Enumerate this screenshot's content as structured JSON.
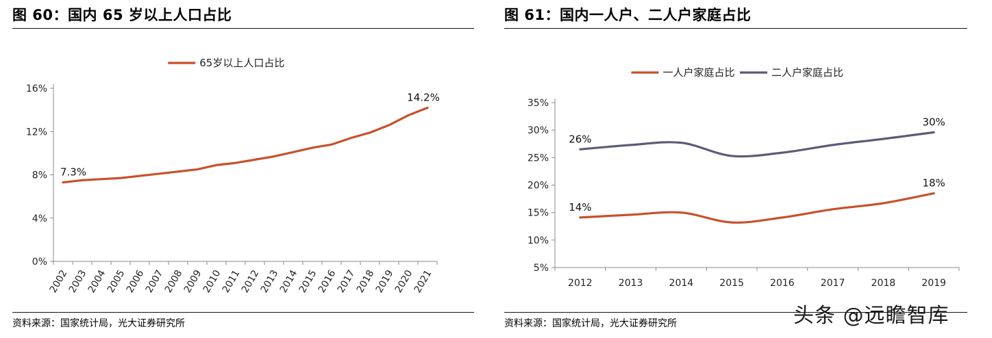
{
  "figures": [
    {
      "title": "图 60：国内 65 岁以上人口占比",
      "source": "资料来源：国家统计局，光大证券研究所"
    },
    {
      "title": "图 61：国内一人户、二人户家庭占比",
      "source": "资料来源：国家统计局，光大证券研究所"
    }
  ],
  "watermark": "头条 @远瞻智库",
  "colors": {
    "orange": "#c8502a",
    "slate": "#5b5b7a",
    "axis": "#888888"
  },
  "chart_data": [
    {
      "type": "line",
      "title": "",
      "x": [
        "2002",
        "2003",
        "2004",
        "2005",
        "2006",
        "2007",
        "2008",
        "2009",
        "2010",
        "2011",
        "2012",
        "2013",
        "2014",
        "2015",
        "2016",
        "2017",
        "2018",
        "2019",
        "2020",
        "2021"
      ],
      "series": [
        {
          "name": "65岁以上人口占比",
          "color": "#c8502a",
          "values": [
            7.3,
            7.5,
            7.6,
            7.7,
            7.9,
            8.1,
            8.3,
            8.5,
            8.9,
            9.1,
            9.4,
            9.7,
            10.1,
            10.5,
            10.8,
            11.4,
            11.9,
            12.6,
            13.5,
            14.2
          ]
        }
      ],
      "y_ticks": [
        "0%",
        "4%",
        "8%",
        "12%",
        "16%"
      ],
      "ylim": [
        0,
        16
      ],
      "data_labels": [
        {
          "text": "7.3%",
          "index": 0
        },
        {
          "text": "14.2%",
          "index": 19
        }
      ],
      "legend_position": "top-center",
      "grid": false,
      "x_label_rotation": "rotated"
    },
    {
      "type": "line",
      "title": "",
      "x": [
        "2012",
        "2013",
        "2014",
        "2015",
        "2016",
        "2017",
        "2018",
        "2019"
      ],
      "series": [
        {
          "name": "一人户家庭占比",
          "color": "#c8502a",
          "values": [
            14.1,
            14.6,
            15.0,
            13.2,
            14.1,
            15.6,
            16.7,
            18.5
          ]
        },
        {
          "name": "二人户家庭占比",
          "color": "#5b5b7a",
          "values": [
            26.5,
            27.3,
            27.7,
            25.3,
            25.9,
            27.3,
            28.4,
            29.6
          ]
        }
      ],
      "y_ticks": [
        "5%",
        "10%",
        "15%",
        "20%",
        "25%",
        "30%",
        "35%"
      ],
      "ylim": [
        5,
        35
      ],
      "data_labels": [
        {
          "text": "14%",
          "series": 0,
          "index": 0
        },
        {
          "text": "18%",
          "series": 0,
          "index": 7
        },
        {
          "text": "26%",
          "series": 1,
          "index": 0
        },
        {
          "text": "30%",
          "series": 1,
          "index": 7
        }
      ],
      "legend_position": "top-center",
      "grid": false
    }
  ]
}
